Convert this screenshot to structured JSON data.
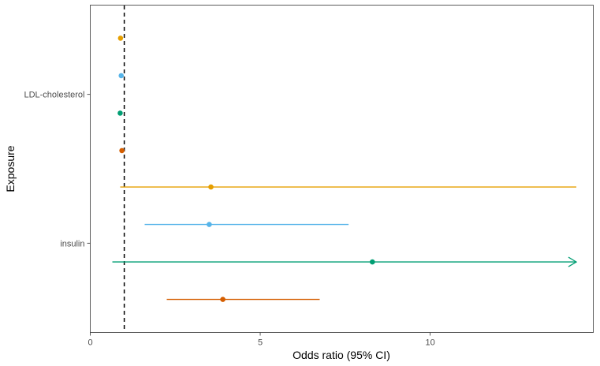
{
  "chart_data": {
    "type": "forest",
    "xlabel": "Odds ratio (95% CI)",
    "ylabel": "Exposure",
    "xlim": [
      0,
      14.8
    ],
    "x_ticks": [
      0,
      5,
      10
    ],
    "reference_line": 1,
    "grid": false,
    "legend": "none",
    "categories": [
      "LDL-cholesterol",
      "insulin"
    ],
    "series_colors": [
      "#E69F00",
      "#56B4E9",
      "#009E73",
      "#D55E00"
    ],
    "points": [
      {
        "exposure": "LDL-cholesterol",
        "series_index": 0,
        "or": 0.89,
        "lo": 0.87,
        "hi": 0.91
      },
      {
        "exposure": "LDL-cholesterol",
        "series_index": 1,
        "or": 0.91,
        "lo": 0.89,
        "hi": 0.93
      },
      {
        "exposure": "LDL-cholesterol",
        "series_index": 2,
        "or": 0.88,
        "lo": 0.86,
        "hi": 0.9
      },
      {
        "exposure": "LDL-cholesterol",
        "series_index": 3,
        "or": 0.93,
        "lo": 0.91,
        "hi": 0.95
      },
      {
        "exposure": "insulin",
        "series_index": 0,
        "or": 3.55,
        "lo": 0.88,
        "hi": 14.3
      },
      {
        "exposure": "insulin",
        "series_index": 1,
        "or": 3.5,
        "lo": 1.6,
        "hi": 7.6
      },
      {
        "exposure": "insulin",
        "series_index": 2,
        "or": 8.3,
        "lo": 0.65,
        "hi": 14.3,
        "hi_truncated": true
      },
      {
        "exposure": "insulin",
        "series_index": 3,
        "or": 3.9,
        "lo": 2.25,
        "hi": 6.75
      }
    ]
  }
}
